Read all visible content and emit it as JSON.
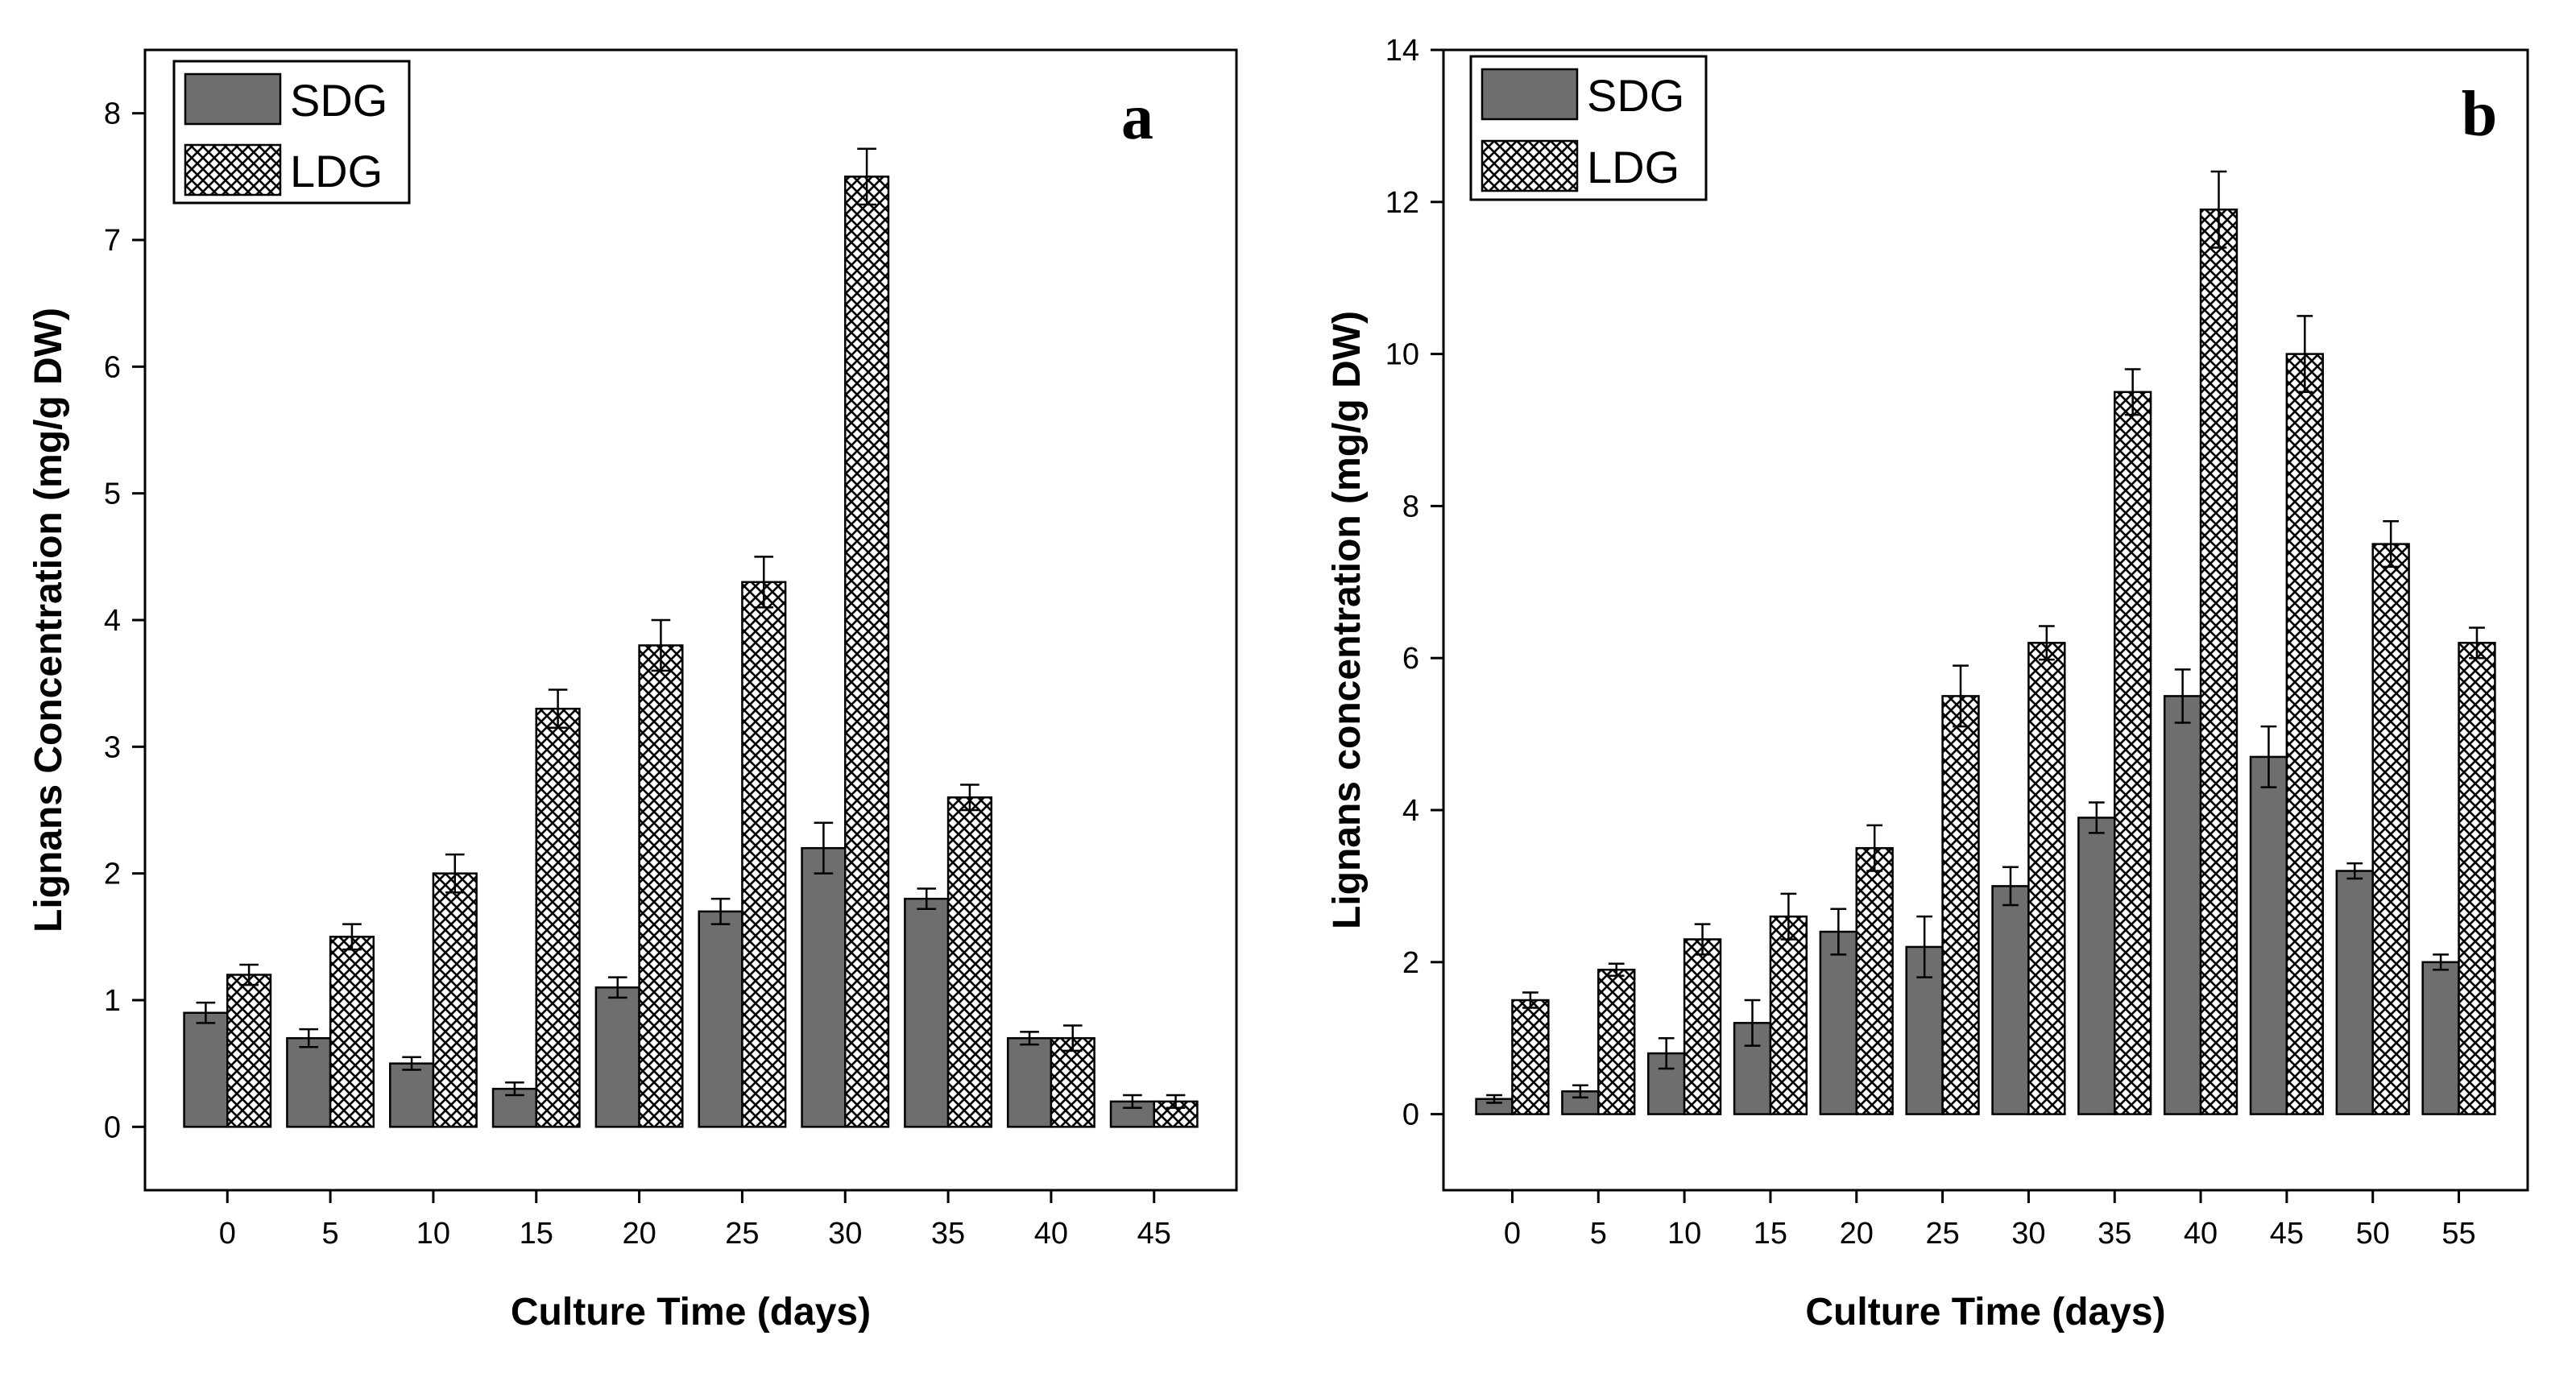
{
  "colors": {
    "sdg_fill": "#6e6e6e",
    "ldg_fill": "#ffffff",
    "ldg_hatch": "#000000",
    "axis": "#000000"
  },
  "chart_data": [
    {
      "type": "bar",
      "panel_label": "a",
      "xlabel": "Culture Time (days)",
      "ylabel": "Lignans Concentration (mg/g DW)",
      "ylim": [
        -0.5,
        8.5
      ],
      "yticks": [
        0,
        1,
        2,
        3,
        4,
        5,
        6,
        7,
        8
      ],
      "categories": [
        "0",
        "5",
        "10",
        "15",
        "20",
        "25",
        "30",
        "35",
        "40",
        "45"
      ],
      "legend": [
        "SDG",
        "LDG"
      ],
      "legend_position": "top-left",
      "series": [
        {
          "name": "SDG",
          "values": [
            0.9,
            0.7,
            0.5,
            0.3,
            1.1,
            1.7,
            2.2,
            1.8,
            0.7,
            0.2
          ],
          "errors": [
            0.08,
            0.07,
            0.05,
            0.05,
            0.08,
            0.1,
            0.2,
            0.08,
            0.05,
            0.05
          ]
        },
        {
          "name": "LDG",
          "values": [
            1.2,
            1.5,
            2.0,
            3.3,
            3.8,
            4.3,
            7.5,
            2.6,
            0.7,
            0.2
          ],
          "errors": [
            0.08,
            0.1,
            0.15,
            0.15,
            0.2,
            0.2,
            0.22,
            0.1,
            0.1,
            0.05
          ]
        }
      ]
    },
    {
      "type": "bar",
      "panel_label": "b",
      "xlabel": "Culture Time (days)",
      "ylabel": "Lignans concentration (mg/g DW)",
      "ylim": [
        -1,
        14
      ],
      "yticks": [
        0,
        2,
        4,
        6,
        8,
        10,
        12,
        14
      ],
      "categories": [
        "0",
        "5",
        "10",
        "15",
        "20",
        "25",
        "30",
        "35",
        "40",
        "45",
        "50",
        "55"
      ],
      "legend": [
        "SDG",
        "LDG"
      ],
      "legend_position": "top-left",
      "series": [
        {
          "name": "SDG",
          "values": [
            0.2,
            0.3,
            0.8,
            1.2,
            2.4,
            2.2,
            3.0,
            3.9,
            5.5,
            4.7,
            3.2,
            2.0
          ],
          "errors": [
            0.05,
            0.08,
            0.2,
            0.3,
            0.3,
            0.4,
            0.25,
            0.2,
            0.35,
            0.4,
            0.1,
            0.1
          ]
        },
        {
          "name": "LDG",
          "values": [
            1.5,
            1.9,
            2.3,
            2.6,
            3.5,
            5.5,
            6.2,
            9.5,
            11.9,
            10.0,
            7.5,
            6.2
          ],
          "errors": [
            0.1,
            0.08,
            0.2,
            0.3,
            0.3,
            0.4,
            0.22,
            0.3,
            0.5,
            0.5,
            0.3,
            0.2
          ]
        }
      ]
    }
  ]
}
